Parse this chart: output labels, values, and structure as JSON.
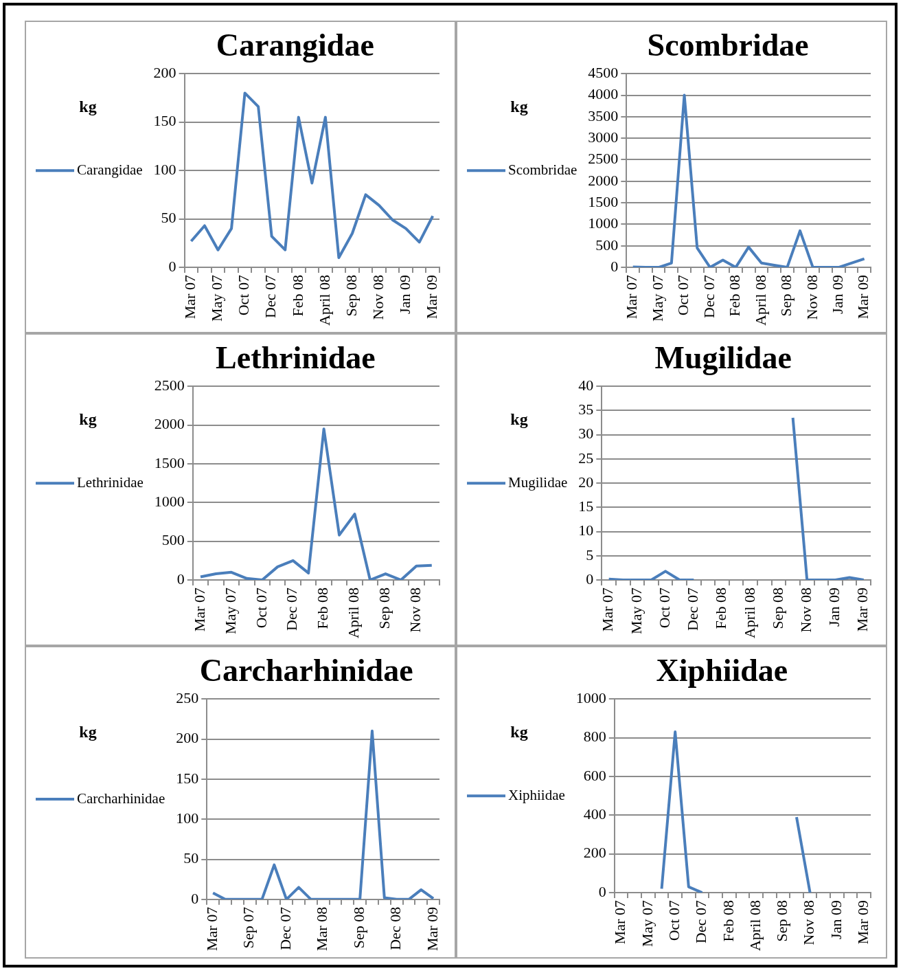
{
  "chart_data": [
    {
      "type": "line",
      "title": "Carangidae",
      "ylabel": "kg",
      "categories": [
        "Mar 07",
        null,
        "May 07",
        null,
        "Oct 07",
        null,
        "Dec 07",
        null,
        "Feb 08",
        null,
        "April 08",
        null,
        "Sep 08",
        null,
        "Nov 08",
        null,
        "Jan 09",
        null,
        "Mar 09"
      ],
      "series": [
        {
          "name": "Carangidae",
          "color": "#4a7ebb",
          "values": [
            27,
            43,
            18,
            40,
            180,
            166,
            32,
            18,
            155,
            87,
            155,
            10,
            35,
            75,
            64,
            49,
            40,
            26,
            53
          ]
        }
      ],
      "ylim": [
        0,
        200
      ],
      "yticks": [
        0,
        50,
        100,
        150,
        200
      ],
      "grid": "y",
      "legend": "left",
      "marker": "none"
    },
    {
      "type": "line",
      "title": "Scombridae",
      "ylabel": "kg",
      "categories": [
        "Mar 07",
        null,
        "May 07",
        null,
        "Oct 07",
        null,
        "Dec 07",
        null,
        "Feb 08",
        null,
        "April 08",
        null,
        "Sep 08",
        null,
        "Nov 08",
        null,
        "Jan 09",
        null,
        "Mar 09"
      ],
      "series": [
        {
          "name": "Scombridae",
          "color": "#4a7ebb",
          "values": [
            10,
            0,
            0,
            100,
            4000,
            450,
            0,
            170,
            0,
            470,
            100,
            50,
            0,
            850,
            0,
            0,
            0,
            100,
            200
          ]
        }
      ],
      "ylim": [
        0,
        4500
      ],
      "yticks": [
        0,
        500,
        1000,
        1500,
        2000,
        2500,
        3000,
        3500,
        4000,
        4500
      ],
      "grid": "y",
      "legend": "left",
      "marker": "none"
    },
    {
      "type": "line",
      "title": "Lethrinidae",
      "ylabel": "kg",
      "categories": [
        "Mar 07",
        null,
        "May 07",
        null,
        "Oct 07",
        null,
        "Dec 07",
        null,
        "Feb 08",
        null,
        "April 08",
        null,
        "Sep 08",
        null,
        "Nov 08",
        null
      ],
      "series": [
        {
          "name": "Lethrinidae",
          "color": "#4a7ebb",
          "values": [
            40,
            80,
            100,
            20,
            0,
            170,
            250,
            90,
            1950,
            580,
            850,
            0,
            80,
            0,
            180,
            190
          ]
        }
      ],
      "ylim": [
        0,
        2500
      ],
      "yticks": [
        0,
        500,
        1000,
        1500,
        2000,
        2500
      ],
      "grid": "y",
      "legend": "left",
      "marker": "none"
    },
    {
      "type": "line",
      "title": "Mugilidae",
      "ylabel": "kg",
      "categories": [
        "Mar 07",
        null,
        "May 07",
        null,
        "Oct 07",
        null,
        "Dec 07",
        null,
        "Feb 08",
        null,
        "April 08",
        null,
        "Sep 08",
        null,
        "Nov 08",
        null,
        "Jan 09",
        null,
        "Mar 09"
      ],
      "series": [
        {
          "name": "Mugilidae",
          "color": "#4a7ebb",
          "values": [
            0.2,
            0,
            0,
            0,
            1.8,
            0,
            0,
            null,
            null,
            null,
            null,
            null,
            null,
            33.5,
            0,
            0,
            0,
            0.5,
            0
          ]
        }
      ],
      "ylim": [
        0,
        40
      ],
      "yticks": [
        0,
        5,
        10,
        15,
        20,
        25,
        30,
        35,
        40
      ],
      "grid": "y",
      "legend": "left",
      "marker": "none"
    },
    {
      "type": "line",
      "title": "Carcharhinidae",
      "ylabel": "kg",
      "categories": [
        "Mar 07",
        null,
        null,
        "Sep 07",
        null,
        null,
        "Dec 07",
        null,
        null,
        "Mar 08",
        null,
        null,
        "Sep 08",
        null,
        null,
        "Dec 08",
        null,
        null,
        "Mar 09"
      ],
      "series": [
        {
          "name": "Carcharhinidae",
          "color": "#4a7ebb",
          "values": [
            8,
            0,
            0,
            0,
            0,
            43,
            0,
            15,
            0,
            0,
            0,
            0,
            0,
            210,
            2,
            0,
            0,
            12,
            1
          ]
        }
      ],
      "ylim": [
        0,
        250
      ],
      "yticks": [
        0,
        50,
        100,
        150,
        200,
        250
      ],
      "grid": "y",
      "legend": "left",
      "marker": "none"
    },
    {
      "type": "line",
      "title": "Xiphiidae",
      "ylabel": "kg",
      "categories": [
        "Mar 07",
        null,
        "May 07",
        null,
        "Oct 07",
        null,
        "Dec 07",
        null,
        "Feb 08",
        null,
        "April 08",
        null,
        "Sep 08",
        null,
        "Nov 08",
        null,
        "Jan 09",
        null,
        "Mar 09"
      ],
      "series": [
        {
          "name": "Xiphiidae",
          "color": "#4a7ebb",
          "values": [
            null,
            null,
            null,
            20,
            830,
            30,
            0,
            null,
            null,
            null,
            null,
            null,
            null,
            390,
            0,
            null,
            null,
            null,
            null
          ]
        }
      ],
      "ylim": [
        0,
        1000
      ],
      "yticks": [
        0,
        200,
        400,
        600,
        800,
        1000
      ],
      "grid": "y",
      "legend": "left",
      "marker": "none"
    }
  ]
}
